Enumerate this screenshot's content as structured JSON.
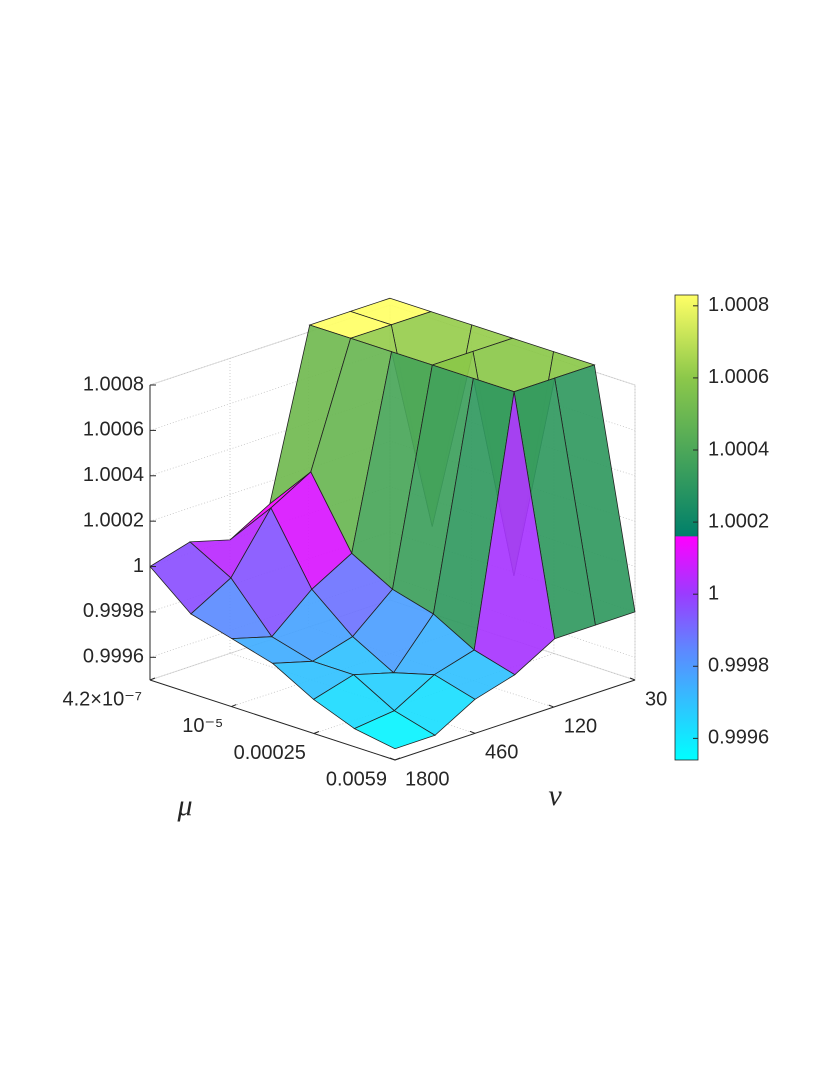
{
  "chart_data": {
    "type": "surface",
    "xlabel": "μ",
    "ylabel": "ν",
    "x": [
      4.2e-07,
      2.07e-06,
      1.02e-05,
      5e-05,
      0.000247,
      0.00121,
      0.0059
    ],
    "y": [
      30,
      59,
      118,
      233,
      460,
      910,
      1800
    ],
    "z": [
      [
        1.00083,
        1.00083,
        1.00083,
        1.0001,
        1.0,
        1.00005,
        1.0
      ],
      [
        1.00083,
        1.00083,
        1.00083,
        1.0003,
        1.0002,
        0.99995,
        0.99985
      ],
      [
        1.00083,
        1.0,
        1.00083,
        1.0,
        0.9999,
        0.99975,
        0.9998
      ],
      [
        1.00083,
        1.00083,
        1.00083,
        0.9999,
        0.99975,
        0.9997,
        0.99975
      ],
      [
        1.00083,
        0.9999,
        1.00083,
        0.99985,
        0.99965,
        0.9997,
        0.99965
      ],
      [
        1.00083,
        1.00083,
        1.00083,
        0.99975,
        0.9997,
        0.9996,
        0.99958
      ],
      [
        0.9998,
        0.9998,
        0.9998,
        0.9997,
        0.99965,
        0.99955,
        0.99955
      ]
    ],
    "xscale": "log",
    "yscale": "log",
    "xlim": [
      4.2e-07,
      0.0059
    ],
    "ylim": [
      30,
      1800
    ],
    "zlim": [
      0.9995,
      1.0008
    ],
    "xticks": [
      {
        "value": 4.2e-07,
        "label": "4.2×10⁻⁷"
      },
      {
        "value": 1e-05,
        "label": "10⁻⁵"
      },
      0.00025,
      0.0059
    ],
    "yticks": [
      30,
      120,
      460,
      1800
    ],
    "zticks": [
      0.9996,
      0.9998,
      1,
      1.0002,
      1.0004,
      1.0006,
      1.0008
    ],
    "clim": [
      0.99954,
      1.00083
    ],
    "cticks": [
      0.9996,
      0.9998,
      1,
      1.0002,
      1.0004,
      1.0006,
      1.0008
    ],
    "colormap": [
      {
        "value": 0.99954,
        "color": "#00ffff"
      },
      {
        "value": 0.99985,
        "color": "#5f86ff"
      },
      {
        "value": 1.0,
        "color": "#9a3cff"
      },
      {
        "value": 1.00016,
        "color": "#ff00ff"
      },
      {
        "value": 1.000161,
        "color": "#00806a"
      },
      {
        "value": 1.0006,
        "color": "#8cc84a"
      },
      {
        "value": 1.00083,
        "color": "#ffff66"
      }
    ],
    "grid": true
  }
}
